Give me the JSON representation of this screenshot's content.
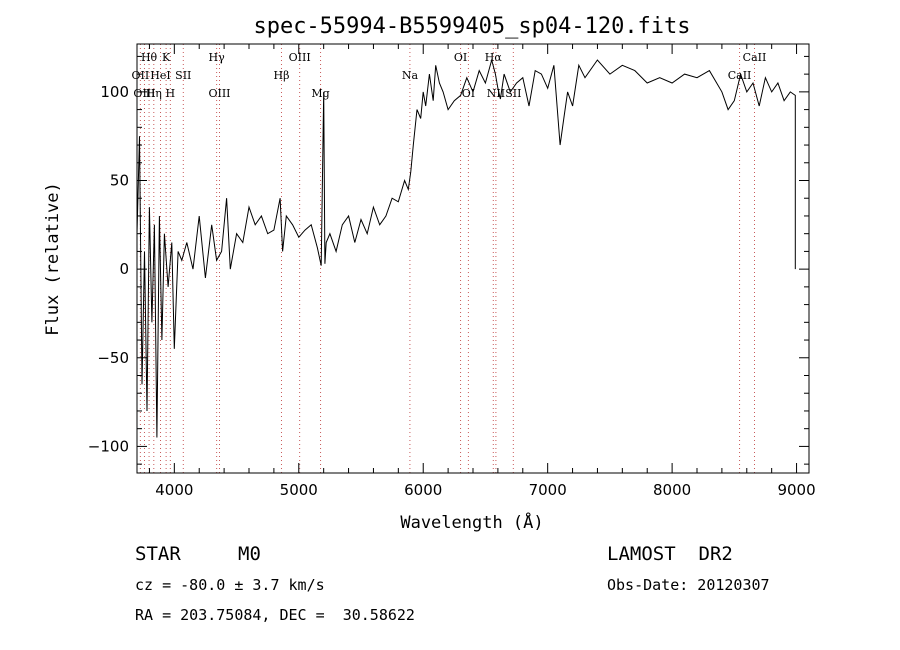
{
  "chart_data": {
    "type": "line",
    "title": "spec-55994-B5599405_sp04-120.fits",
    "xlabel": "Wavelength (Å)",
    "ylabel": "Flux (relative)",
    "xlim": [
      3700,
      9100
    ],
    "ylim": [
      -115,
      127
    ],
    "x_ticks": [
      4000,
      5000,
      6000,
      7000,
      8000,
      9000
    ],
    "y_ticks": [
      -100,
      -50,
      0,
      50,
      100
    ],
    "grid": false,
    "series": [
      {
        "color": "#000000",
        "x": [
          3700,
          3720,
          3740,
          3760,
          3780,
          3800,
          3820,
          3840,
          3860,
          3880,
          3900,
          3920,
          3950,
          3980,
          4000,
          4030,
          4060,
          4100,
          4150,
          4200,
          4250,
          4300,
          4340,
          4380,
          4420,
          4450,
          4500,
          4550,
          4600,
          4650,
          4700,
          4750,
          4800,
          4850,
          4870,
          4900,
          4950,
          5000,
          5050,
          5100,
          5150,
          5180,
          5200,
          5210,
          5220,
          5250,
          5300,
          5350,
          5400,
          5450,
          5500,
          5550,
          5600,
          5650,
          5700,
          5750,
          5800,
          5850,
          5880,
          5900,
          5920,
          5950,
          5980,
          6000,
          6020,
          6050,
          6080,
          6100,
          6130,
          6160,
          6200,
          6250,
          6300,
          6350,
          6400,
          6450,
          6500,
          6550,
          6580,
          6600,
          6620,
          6650,
          6700,
          6750,
          6800,
          6850,
          6900,
          6950,
          7000,
          7050,
          7100,
          7130,
          7160,
          7200,
          7250,
          7300,
          7400,
          7500,
          7600,
          7700,
          7800,
          7900,
          8000,
          8100,
          8200,
          8300,
          8400,
          8450,
          8500,
          8550,
          8600,
          8650,
          8700,
          8750,
          8800,
          8850,
          8900,
          8950,
          8990
        ],
        "y": [
          20,
          75,
          -65,
          10,
          -80,
          35,
          -30,
          25,
          -95,
          30,
          -40,
          20,
          -10,
          15,
          -45,
          10,
          5,
          15,
          0,
          30,
          -5,
          25,
          5,
          10,
          40,
          0,
          20,
          15,
          35,
          25,
          30,
          20,
          22,
          40,
          10,
          30,
          25,
          18,
          22,
          25,
          12,
          2,
          100,
          3,
          15,
          20,
          10,
          25,
          30,
          15,
          28,
          20,
          35,
          25,
          30,
          40,
          38,
          50,
          45,
          55,
          70,
          90,
          85,
          100,
          92,
          110,
          95,
          115,
          105,
          100,
          90,
          95,
          98,
          108,
          100,
          112,
          105,
          118,
          110,
          102,
          96,
          110,
          100,
          105,
          108,
          92,
          112,
          110,
          102,
          115,
          70,
          85,
          100,
          92,
          115,
          108,
          118,
          110,
          115,
          112,
          105,
          108,
          105,
          110,
          108,
          112,
          100,
          90,
          95,
          110,
          100,
          105,
          92,
          108,
          100,
          105,
          95,
          100,
          98
        ]
      }
    ],
    "line_markers": [
      {
        "label": "Hθ",
        "x": 3797,
        "row": 0
      },
      {
        "label": "K",
        "x": 3934,
        "row": 0
      },
      {
        "label": "Hγ",
        "x": 4340,
        "row": 0
      },
      {
        "label": "OIII",
        "x": 5007,
        "row": 0
      },
      {
        "label": "OI",
        "x": 6300,
        "row": 0
      },
      {
        "label": "Hα",
        "x": 6563,
        "row": 0
      },
      {
        "label": "CaII",
        "x": 8662,
        "row": 0
      },
      {
        "label": "OII",
        "x": 3727,
        "row": 1
      },
      {
        "label": "HeI",
        "x": 3889,
        "row": 1
      },
      {
        "label": "SII",
        "x": 4072,
        "row": 1
      },
      {
        "label": "Hβ",
        "x": 4861,
        "row": 1
      },
      {
        "label": "Na",
        "x": 5893,
        "row": 1
      },
      {
        "label": "CaII",
        "x": 8542,
        "row": 1
      },
      {
        "label": "OIII",
        "x": 3760,
        "row": 2
      },
      {
        "label": "Hη",
        "x": 3835,
        "row": 2
      },
      {
        "label": "H",
        "x": 3968,
        "row": 2
      },
      {
        "label": "OIII",
        "x": 4363,
        "row": 2
      },
      {
        "label": "Mg",
        "x": 5175,
        "row": 2
      },
      {
        "label": "OI",
        "x": 6363,
        "row": 2
      },
      {
        "label": "NII",
        "x": 6584,
        "row": 2
      },
      {
        "label": "SII",
        "x": 6724,
        "row": 2
      }
    ],
    "line_marker_x": [
      3727,
      3760,
      3797,
      3835,
      3889,
      3934,
      3968,
      4072,
      4340,
      4363,
      4861,
      5007,
      5175,
      5893,
      6300,
      6363,
      6563,
      6584,
      6724,
      8542,
      8662
    ]
  },
  "info": {
    "object_class": "STAR",
    "subclass": "M0",
    "survey": "LAMOST  DR2",
    "velocity": "cz = -80.0 ± 3.7 km/s",
    "obs_date": "Obs-Date: 20120307",
    "coords": "RA = 203.75084, DEC =  30.58622"
  }
}
